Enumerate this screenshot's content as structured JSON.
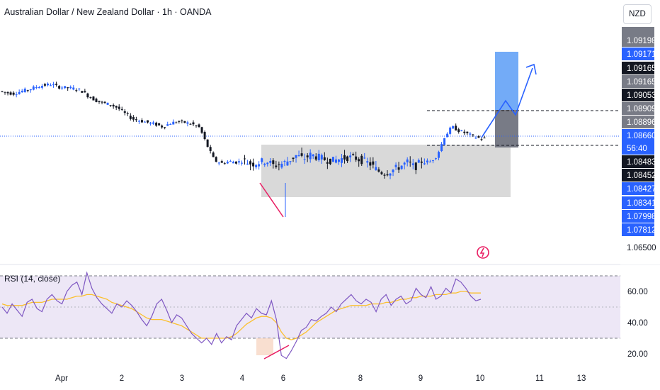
{
  "header": {
    "title": "Australian Dollar / New Zealand Dollar · 1h · OANDA",
    "currency": "NZD"
  },
  "rsi": {
    "label": "RSI (14, close)",
    "ticks": [
      "60.00",
      "40.00",
      "20.00"
    ]
  },
  "colors": {
    "up_candle": "#2962ff",
    "down_candle": "#131722",
    "rsi_line": "#7e57c2",
    "rsi_ma": "#fbc02d",
    "zone": "#d9d9d9",
    "target_box": "#5b9cf6",
    "stop_box": "#787b86",
    "arrow": "#2962ff",
    "divergence": "#e91e63",
    "price_line": "#2962ff"
  },
  "chart_data": [
    {
      "type": "candlestick",
      "symbol": "AUDNZD",
      "timeframe": "1h",
      "x_ticks": [
        "Apr",
        "2",
        "3",
        "4",
        "6",
        "8",
        "9",
        "10",
        "11",
        "13"
      ],
      "price_labels": [
        {
          "text": "1.09198",
          "style": "gray"
        },
        {
          "text": "1.09171",
          "style": "blue"
        },
        {
          "text": "1.09165",
          "style": "black"
        },
        {
          "text": "1.09165",
          "style": "gray"
        },
        {
          "text": "1.09053",
          "style": "black"
        },
        {
          "text": "1.08909",
          "style": "gray"
        },
        {
          "text": "1.08896",
          "style": "gray"
        },
        {
          "text": "1.08660",
          "style": "blue"
        },
        {
          "text": "56:40",
          "style": "blue"
        },
        {
          "text": "1.08483",
          "style": "black"
        },
        {
          "text": "1.08452",
          "style": "black"
        },
        {
          "text": "1.08427",
          "style": "blue"
        },
        {
          "text": "1.08341",
          "style": "blue"
        },
        {
          "text": "1.07998",
          "style": "blue"
        },
        {
          "text": "1.07812",
          "style": "blue"
        },
        {
          "text": "1.06500",
          "style": "plain"
        }
      ],
      "current_price": 1.0866,
      "countdown": "56:40",
      "range_zone": {
        "top": 1.0845,
        "bottom": 1.0795
      },
      "resistance_level": 1.0889,
      "support_level": 1.0848,
      "trend": [
        1.0912,
        1.091,
        1.0909,
        1.0912,
        1.0914,
        1.0917,
        1.0919,
        1.092,
        1.0917,
        1.0916,
        1.0915,
        1.0913,
        1.0906,
        1.0901,
        1.0898,
        1.0896,
        1.0892,
        1.0885,
        1.0879,
        1.0877,
        1.0875,
        1.0873,
        1.087,
        1.0874,
        1.0876,
        1.0875,
        1.0873,
        1.0869,
        1.0848,
        1.083,
        1.0827,
        1.0829,
        1.0828,
        1.083,
        1.0826,
        1.0828,
        1.083,
        1.0824,
        1.0826,
        1.083,
        1.0836,
        1.0832,
        1.0837,
        1.0834,
        1.0831,
        1.083,
        1.0832,
        1.0834,
        1.0833,
        1.083,
        1.0826,
        1.0818,
        1.0815,
        1.0819,
        1.0823,
        1.0828,
        1.0822,
        1.083,
        1.0828,
        1.0836,
        1.0858,
        1.087,
        1.0865,
        1.0862,
        1.0858,
        1.0856
      ]
    },
    {
      "type": "line",
      "name": "RSI (14, close)",
      "ylim": [
        10,
        75
      ],
      "y_ticks": [
        60,
        40,
        20
      ],
      "levels": [
        70,
        30
      ],
      "rsi": [
        50,
        46,
        52,
        48,
        44,
        53,
        55,
        49,
        47,
        55,
        58,
        54,
        52,
        60,
        64,
        66,
        58,
        72,
        62,
        56,
        52,
        49,
        46,
        52,
        50,
        54,
        51,
        47,
        42,
        38,
        44,
        52,
        55,
        48,
        40,
        45,
        43,
        38,
        33,
        30,
        27,
        30,
        26,
        33,
        27,
        31,
        29,
        38,
        42,
        46,
        43,
        49,
        46,
        45,
        54,
        42,
        19,
        17,
        22,
        28,
        35,
        37,
        42,
        41,
        44,
        46,
        50,
        47,
        52,
        55,
        58,
        54,
        52,
        55,
        53,
        47,
        55,
        58,
        51,
        55,
        57,
        52,
        54,
        62,
        58,
        56,
        63,
        55,
        57,
        62,
        59,
        68,
        66,
        62,
        57,
        54,
        55
      ],
      "rsi_ma": [
        52,
        51,
        51,
        51,
        51,
        52,
        53,
        53,
        53,
        54,
        55,
        55,
        55,
        55,
        56,
        57,
        57,
        58,
        58,
        57,
        56,
        55,
        53,
        52,
        51,
        50,
        49,
        47,
        45,
        43,
        42,
        42,
        42,
        41,
        40,
        39,
        38,
        36,
        34,
        32,
        30,
        30,
        30,
        30,
        30,
        30,
        31,
        33,
        36,
        39,
        41,
        43,
        44,
        44,
        43,
        40,
        34,
        30,
        29,
        30,
        32,
        34,
        37,
        40,
        42,
        44,
        46,
        48,
        49,
        50,
        51,
        51,
        51,
        51,
        52,
        52,
        52,
        53,
        53,
        54,
        55,
        55,
        56,
        56,
        57,
        57,
        57,
        58,
        58,
        58,
        59,
        59,
        60,
        60,
        59,
        59,
        59
      ]
    }
  ]
}
